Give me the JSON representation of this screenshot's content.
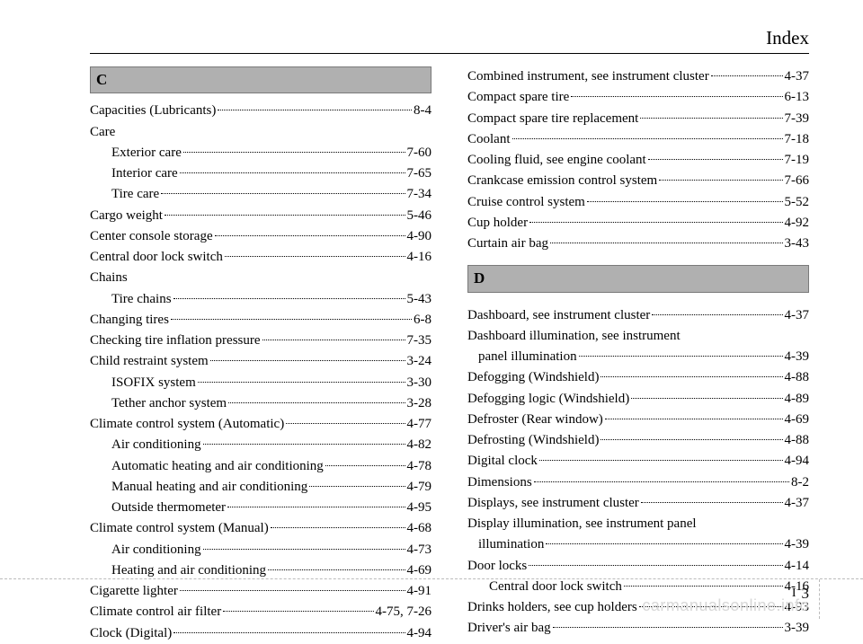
{
  "header": "Index",
  "footer": {
    "chapter": "I",
    "page": "3"
  },
  "watermark": "carmanualsonline.info",
  "left": {
    "letter": "C",
    "rows": [
      {
        "type": "entry",
        "label": "Capacities (Lubricants)",
        "page": "8-4"
      },
      {
        "type": "plain",
        "label": "Care"
      },
      {
        "type": "sub",
        "label": "Exterior care",
        "page": "7-60"
      },
      {
        "type": "sub",
        "label": "Interior care",
        "page": "7-65"
      },
      {
        "type": "sub",
        "label": "Tire care",
        "page": "7-34"
      },
      {
        "type": "entry",
        "label": "Cargo weight",
        "page": "5-46"
      },
      {
        "type": "entry",
        "label": "Center console storage",
        "page": "4-90"
      },
      {
        "type": "entry",
        "label": "Central door lock switch",
        "page": "4-16"
      },
      {
        "type": "plain",
        "label": "Chains"
      },
      {
        "type": "sub",
        "label": "Tire chains",
        "page": "5-43"
      },
      {
        "type": "entry",
        "label": "Changing tires",
        "page": "6-8"
      },
      {
        "type": "entry",
        "label": "Checking tire inflation pressure",
        "page": "7-35"
      },
      {
        "type": "entry",
        "label": "Child restraint system",
        "page": "3-24"
      },
      {
        "type": "sub",
        "label": "ISOFIX system",
        "page": "3-30"
      },
      {
        "type": "sub",
        "label": "Tether anchor system",
        "page": "3-28"
      },
      {
        "type": "entry",
        "label": "Climate control system (Automatic)",
        "page": "4-77"
      },
      {
        "type": "sub",
        "label": "Air conditioning",
        "page": "4-82"
      },
      {
        "type": "sub",
        "label": "Automatic heating and air conditioning",
        "page": "4-78"
      },
      {
        "type": "sub",
        "label": "Manual heating and air conditioning",
        "page": "4-79"
      },
      {
        "type": "sub",
        "label": "Outside thermometer",
        "page": "4-95"
      },
      {
        "type": "entry",
        "label": "Climate control system (Manual)",
        "page": "4-68"
      },
      {
        "type": "sub",
        "label": "Air conditioning",
        "page": "4-73"
      },
      {
        "type": "sub",
        "label": "Heating and air conditioning",
        "page": "4-69"
      },
      {
        "type": "entry",
        "label": "Cigarette lighter",
        "page": "4-91"
      },
      {
        "type": "entry",
        "label": "Climate control air filter",
        "page": "4-75, 7-26"
      },
      {
        "type": "entry",
        "label": "Clock (Digital)",
        "page": "4-94"
      }
    ]
  },
  "right": {
    "letter": "D",
    "top_rows": [
      {
        "type": "entry",
        "label": "Combined instrument, see instrument cluster",
        "page": "4-37"
      },
      {
        "type": "entry",
        "label": "Compact spare tire",
        "page": "6-13"
      },
      {
        "type": "entry",
        "label": "Compact spare tire replacement",
        "page": "7-39"
      },
      {
        "type": "entry",
        "label": "Coolant",
        "page": "7-18"
      },
      {
        "type": "entry",
        "label": "Cooling fluid, see engine coolant",
        "page": "7-19"
      },
      {
        "type": "entry",
        "label": "Crankcase emission control system",
        "page": "7-66"
      },
      {
        "type": "entry",
        "label": "Cruise control system",
        "page": "5-52"
      },
      {
        "type": "entry",
        "label": "Cup holder",
        "page": "4-92"
      },
      {
        "type": "entry",
        "label": "Curtain air bag",
        "page": "3-43"
      }
    ],
    "rows": [
      {
        "type": "entry",
        "label": "Dashboard, see instrument cluster",
        "page": "4-37"
      },
      {
        "type": "plain",
        "label": "Dashboard illumination, see instrument"
      },
      {
        "type": "subentry",
        "label": "panel illumination",
        "page": "4-39"
      },
      {
        "type": "entry",
        "label": "Defogging (Windshield)",
        "page": "4-88"
      },
      {
        "type": "entry",
        "label": "Defogging logic (Windshield)",
        "page": "4-89"
      },
      {
        "type": "entry",
        "label": "Defroster (Rear window)",
        "page": "4-69"
      },
      {
        "type": "entry",
        "label": "Defrosting (Windshield)",
        "page": "4-88"
      },
      {
        "type": "entry",
        "label": "Digital clock",
        "page": "4-94"
      },
      {
        "type": "entry",
        "label": "Dimensions",
        "page": "8-2"
      },
      {
        "type": "entry",
        "label": "Displays, see instrument cluster",
        "page": "4-37"
      },
      {
        "type": "plain",
        "label": "Display illumination, see instrument panel"
      },
      {
        "type": "subentry",
        "label": "illumination",
        "page": "4-39"
      },
      {
        "type": "entry",
        "label": "Door locks",
        "page": "4-14"
      },
      {
        "type": "sub",
        "label": "Central door lock switch",
        "page": "4-16"
      },
      {
        "type": "entry",
        "label": "Drinks holders, see cup holders",
        "page": "4-93"
      },
      {
        "type": "entry",
        "label": "Driver's air bag",
        "page": "3-39"
      }
    ]
  }
}
